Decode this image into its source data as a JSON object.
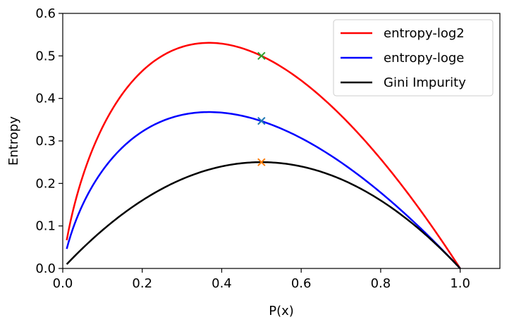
{
  "chart_data": {
    "type": "line",
    "xlabel": "P(x)",
    "ylabel": "Entropy",
    "xlim": [
      0.0,
      1.1
    ],
    "ylim": [
      0.0,
      0.6
    ],
    "xticks": [
      "0.0",
      "0.2",
      "0.4",
      "0.6",
      "0.8",
      "1.0"
    ],
    "yticks": [
      "0.0",
      "0.1",
      "0.2",
      "0.3",
      "0.4",
      "0.5",
      "0.6"
    ],
    "grid": false,
    "legend_position": "top-right",
    "series": [
      {
        "name": "entropy-log2",
        "color": "#ff0000",
        "function": "-p*log2(p)",
        "x": [
          0.01,
          0.05,
          0.1,
          0.15,
          0.2,
          0.25,
          0.3,
          0.3679,
          0.4,
          0.45,
          0.5,
          0.55,
          0.6,
          0.65,
          0.7,
          0.75,
          0.8,
          0.85,
          0.9,
          0.95,
          1.0
        ],
        "values": [
          0.066,
          0.216,
          0.332,
          0.411,
          0.464,
          0.5,
          0.521,
          0.531,
          0.529,
          0.518,
          0.5,
          0.474,
          0.442,
          0.404,
          0.36,
          0.311,
          0.258,
          0.199,
          0.137,
          0.07,
          0.0
        ]
      },
      {
        "name": "entropy-loge",
        "color": "#0000ff",
        "function": "-p*ln(p)",
        "x": [
          0.01,
          0.05,
          0.1,
          0.15,
          0.2,
          0.25,
          0.3,
          0.3679,
          0.4,
          0.45,
          0.5,
          0.55,
          0.6,
          0.65,
          0.7,
          0.75,
          0.8,
          0.85,
          0.9,
          0.95,
          1.0
        ],
        "values": [
          0.046,
          0.15,
          0.23,
          0.285,
          0.322,
          0.347,
          0.361,
          0.368,
          0.367,
          0.359,
          0.347,
          0.329,
          0.306,
          0.28,
          0.25,
          0.216,
          0.179,
          0.138,
          0.095,
          0.049,
          0.0
        ]
      },
      {
        "name": "Gini Impurity",
        "color": "#000000",
        "function": "p*(1-p)",
        "x": [
          0.01,
          0.05,
          0.1,
          0.15,
          0.2,
          0.25,
          0.3,
          0.35,
          0.4,
          0.45,
          0.5,
          0.55,
          0.6,
          0.65,
          0.7,
          0.75,
          0.8,
          0.85,
          0.9,
          0.95,
          1.0
        ],
        "values": [
          0.0099,
          0.0475,
          0.09,
          0.1275,
          0.16,
          0.1875,
          0.21,
          0.2275,
          0.24,
          0.2475,
          0.25,
          0.2475,
          0.24,
          0.2275,
          0.21,
          0.1875,
          0.16,
          0.1275,
          0.09,
          0.0475,
          0.0
        ]
      }
    ],
    "markers": [
      {
        "x": 0.5,
        "y": 0.5,
        "color": "#2ca02c",
        "symbol": "x"
      },
      {
        "x": 0.5,
        "y": 0.347,
        "color": "#1f77b4",
        "symbol": "x"
      },
      {
        "x": 0.5,
        "y": 0.25,
        "color": "#ff7f0e",
        "symbol": "x"
      }
    ]
  }
}
